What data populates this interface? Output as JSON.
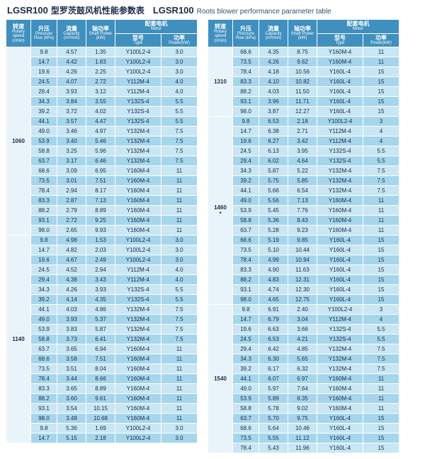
{
  "title": {
    "model": "LGSR100",
    "cn": "型罗茨鼓风机性能参数表",
    "model2": "LGSR100",
    "en": "Roots blower performance parameter table"
  },
  "headers": {
    "speed": {
      "cn": "转速",
      "en": "Rotary speed (r/min)"
    },
    "pressure": {
      "cn": "升压",
      "en": "Pressure Rise (kPa)"
    },
    "capacity": {
      "cn": "流量",
      "en": "Capacity (m³/min)"
    },
    "shaft": {
      "cn": "轴功率",
      "en": "Shaft Power (kW)"
    },
    "motor": {
      "cn": "配套电机",
      "en": "Motor"
    },
    "type": {
      "cn": "型号",
      "en": "Type"
    },
    "power": {
      "cn": "功率",
      "en": "Power(kW)"
    }
  },
  "leftGroups": [
    {
      "speed": "1060",
      "rows": [
        [
          "9.8",
          "4.57",
          "1.35",
          "Y100L2-4",
          "3.0"
        ],
        [
          "14.7",
          "4.42",
          "1.83",
          "Y100L2-4",
          "3.0"
        ],
        [
          "19.6",
          "4.26",
          "2.25",
          "Y100L2-4",
          "3.0"
        ],
        [
          "24.5",
          "4.07",
          "2.72",
          "Y112M-4",
          "4.0"
        ],
        [
          "29.4",
          "3.93",
          "3.12",
          "Y112M-4",
          "4.0"
        ],
        [
          "34.3",
          "3.84",
          "3.55",
          "Y132S-4",
          "5.5"
        ],
        [
          "39.2",
          "3.72",
          "4.02",
          "Y132S-4",
          "5.5"
        ],
        [
          "44.1",
          "3.57",
          "4.47",
          "Y132S-4",
          "5.5"
        ],
        [
          "49.0",
          "3.46",
          "4.97",
          "Y132M-4",
          "7.5"
        ],
        [
          "53.9",
          "3.40",
          "5.46",
          "Y132M-4",
          "7.5"
        ],
        [
          "58.8",
          "3.25",
          "5.96",
          "Y132M-4",
          "7.5"
        ],
        [
          "63.7",
          "3.17",
          "6.46",
          "Y132M-4",
          "7.5"
        ],
        [
          "68.6",
          "3.09",
          "6.95",
          "Y160M-4",
          "11"
        ],
        [
          "73.5",
          "3.01",
          "7.51",
          "Y160M-4",
          "11"
        ],
        [
          "78.4",
          "2.94",
          "8.17",
          "Y160M-4",
          "11"
        ],
        [
          "83.3",
          "2.87",
          "7.13",
          "Y160M-4",
          "11"
        ],
        [
          "88.2",
          "2.79",
          "8.89",
          "Y160M-4",
          "11"
        ],
        [
          "93.1",
          "2.72",
          "9.25",
          "Y160M-4",
          "11"
        ],
        [
          "98.0",
          "2.65",
          "9.93",
          "Y160M-4",
          "11"
        ]
      ]
    },
    {
      "speed": "1140",
      "rows": [
        [
          "9.8",
          "4.98",
          "1.53",
          "Y100L2-4",
          "3.0"
        ],
        [
          "14.7",
          "4.82",
          "2.03",
          "Y100L2-4",
          "3.0"
        ],
        [
          "19.6",
          "4.67",
          "2.49",
          "Y100L2-4",
          "3.0"
        ],
        [
          "24.5",
          "4.52",
          "2.94",
          "Y112M-4",
          "4.0"
        ],
        [
          "29.4",
          "4.38",
          "3.43",
          "Y112M-4",
          "4.0"
        ],
        [
          "34.3",
          "4.26",
          "3.93",
          "Y132S-4",
          "5.5"
        ],
        [
          "39.2",
          "4.14",
          "4.35",
          "Y132S-4",
          "5.5"
        ],
        [
          "44.1",
          "4.03",
          "4.86",
          "Y132M-4",
          "7.5"
        ],
        [
          "49.0",
          "3.93",
          "5.37",
          "Y132M-4",
          "7.5"
        ],
        [
          "53.9",
          "3.83",
          "5.87",
          "Y132M-4",
          "7.5"
        ],
        [
          "58.8",
          "3.73",
          "6.41",
          "Y132M-4",
          "7.5"
        ],
        [
          "63.7",
          "3.65",
          "6.94",
          "Y160M-4",
          "11"
        ],
        [
          "68.6",
          "3.58",
          "7.51",
          "Y160M-4",
          "11"
        ],
        [
          "73.5",
          "3.51",
          "8.04",
          "Y160M-4",
          "11"
        ],
        [
          "78.4",
          "3.44",
          "8.66",
          "Y160M-4",
          "11"
        ],
        [
          "83.3",
          "3.65",
          "8.89",
          "Y160M-4",
          "11"
        ],
        [
          "88.2",
          "3.60",
          "9.61",
          "Y160M-4",
          "11"
        ],
        [
          "93.1",
          "3.54",
          "10.15",
          "Y160M-4",
          "11"
        ],
        [
          "98.0",
          "3.48",
          "10.68",
          "Y160M-4",
          "11"
        ],
        [
          "9.8",
          "5.36",
          "1.69",
          "Y100L2-4",
          "3.0"
        ],
        [
          "14.7",
          "5.15",
          "2.18",
          "Y100L2-4",
          "3.0"
        ]
      ]
    }
  ],
  "rightGroups": [
    {
      "speed": "1310",
      "rows": [
        [
          "68.6",
          "4.35",
          "8.75",
          "Y160M-4",
          "11"
        ],
        [
          "73.5",
          "4.26",
          "9.62",
          "Y160M-4",
          "11"
        ],
        [
          "78.4",
          "4.18",
          "10.56",
          "Y160L-4",
          "15"
        ],
        [
          "83.3",
          "4.10",
          "10.82",
          "Y160L-4",
          "15"
        ],
        [
          "88.2",
          "4.03",
          "11.50",
          "Y160L-4",
          "15"
        ],
        [
          "93.1",
          "3.96",
          "11.71",
          "Y160L-4",
          "15"
        ],
        [
          "98.0",
          "3.87",
          "12.27",
          "Y160L-4",
          "15"
        ]
      ]
    },
    {
      "speed": "1460\n*",
      "rows": [
        [
          "9.8",
          "6.53",
          "2.18",
          "Y100L2-4",
          "3"
        ],
        [
          "14.7",
          "6.38",
          "2.71",
          "Y112M-4",
          "4"
        ],
        [
          "19.6",
          "6.27",
          "3.42",
          "Y112M-4",
          "4"
        ],
        [
          "24.5",
          "6.13",
          "3.95",
          "Y132S-4",
          "5.5"
        ],
        [
          "29.4",
          "6.02",
          "4.64",
          "Y132S-4",
          "5.5"
        ],
        [
          "34.3",
          "5.87",
          "5.22",
          "Y132M-4",
          "7.5"
        ],
        [
          "39.2",
          "5.75",
          "5.85",
          "Y132M-4",
          "7.5"
        ],
        [
          "44.1",
          "5.66",
          "6.54",
          "Y132M-4",
          "7.5"
        ],
        [
          "49.0",
          "5.56",
          "7.13",
          "Y160M-4",
          "11"
        ],
        [
          "53.9",
          "5.45",
          "7.76",
          "Y160M-4",
          "11"
        ],
        [
          "58.8",
          "5.36",
          "8.43",
          "Y160M-4",
          "11"
        ],
        [
          "63.7",
          "5.28",
          "9.23",
          "Y160M-4",
          "11"
        ],
        [
          "68.6",
          "5.19",
          "9.85",
          "Y160L-4",
          "15"
        ],
        [
          "73.5",
          "5.10",
          "10.44",
          "Y160L-4",
          "15"
        ],
        [
          "78.4",
          "4.99",
          "10.94",
          "Y160L-4",
          "15"
        ],
        [
          "83.3",
          "4.90",
          "11.63",
          "Y160L-4",
          "15"
        ],
        [
          "88.2",
          "4.83",
          "12.31",
          "Y160L-4",
          "15"
        ],
        [
          "93.1",
          "4.74",
          "12.30",
          "Y160L-4",
          "15"
        ],
        [
          "98.0",
          "4.65",
          "12.75",
          "Y160L-4",
          "15"
        ]
      ]
    },
    {
      "speed": "1540",
      "rows": [
        [
          "9.8",
          "6.91",
          "2.40",
          "Y100L2-4",
          "3"
        ],
        [
          "14.7",
          "6.79",
          "3.04",
          "Y112M-4",
          "4"
        ],
        [
          "19.6",
          "6.63",
          "3.66",
          "Y132S-4",
          "5.5"
        ],
        [
          "24.5",
          "6.53",
          "4.21",
          "Y132S-4",
          "5.5"
        ],
        [
          "29.4",
          "6.42",
          "4.85",
          "Y132M-4",
          "7.5"
        ],
        [
          "34.3",
          "6.30",
          "5.65",
          "Y132M-4",
          "7.5"
        ],
        [
          "39.2",
          "6.17",
          "6.32",
          "Y132M-4",
          "7.5"
        ],
        [
          "44.1",
          "6.07",
          "6.97",
          "Y160M-4",
          "11"
        ],
        [
          "49.0",
          "5.97",
          "7.64",
          "Y160M-4",
          "11"
        ],
        [
          "53.9",
          "5.89",
          "8.35",
          "Y160M-4",
          "11"
        ],
        [
          "58.8",
          "5.78",
          "9.02",
          "Y160M-4",
          "11"
        ],
        [
          "63.7",
          "5.70",
          "9.75",
          "Y160L-4",
          "15"
        ],
        [
          "68.6",
          "5.64",
          "10.46",
          "Y160L-4",
          "15"
        ],
        [
          "73.5",
          "5.55",
          "11.12",
          "Y160L-4",
          "15"
        ],
        [
          "78.4",
          "5.43",
          "11.96",
          "Y160L-4",
          "15"
        ]
      ]
    }
  ]
}
